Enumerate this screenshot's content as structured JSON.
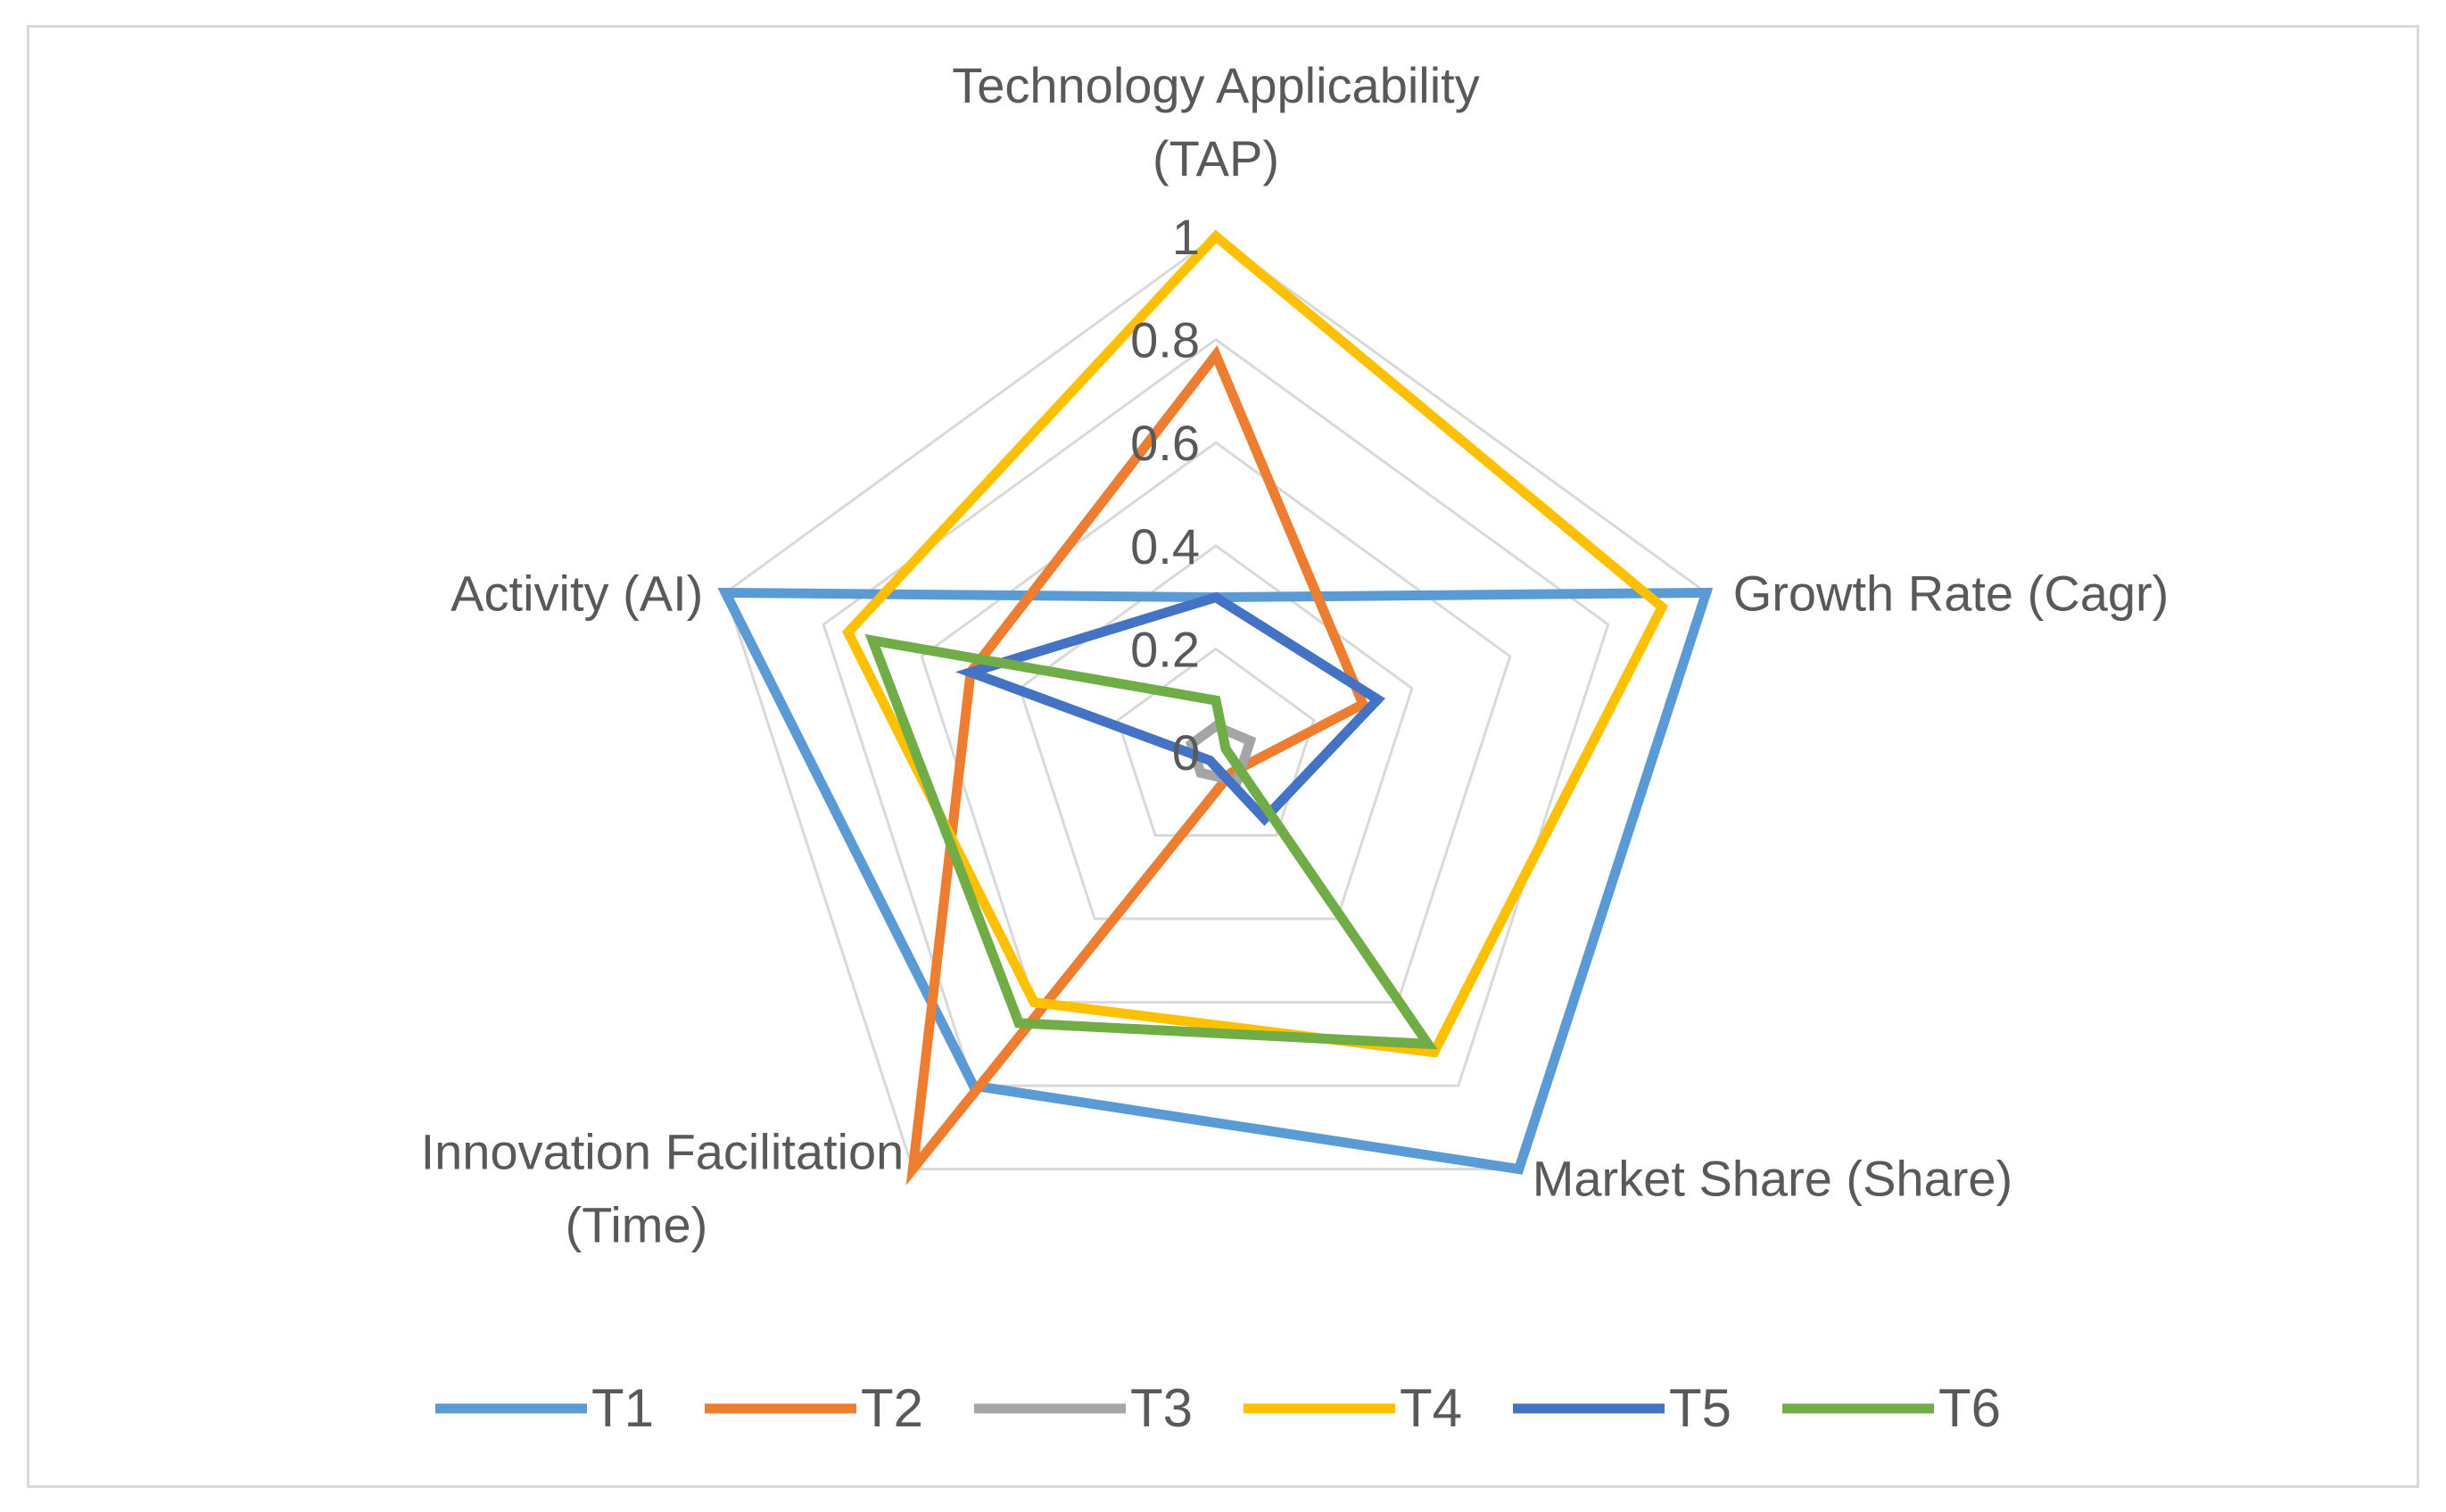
{
  "chart_data": {
    "type": "radar",
    "title": "",
    "axes": [
      {
        "name": "Technology Applicability (TAP)",
        "lines": [
          "Technology Applicability",
          "(TAP)"
        ]
      },
      {
        "name": "Growth Rate (Cagr)",
        "lines": [
          "Growth Rate (Cagr)"
        ]
      },
      {
        "name": "Market Share (Share)",
        "lines": [
          "Market Share (Share)"
        ]
      },
      {
        "name": "Innovation Facilitation (Time)",
        "lines": [
          "Innovation Facilitation",
          "(Time)"
        ]
      },
      {
        "name": "Activity (AI)",
        "lines": [
          "Activity (AI)"
        ]
      }
    ],
    "ticks": [
      0,
      0.2,
      0.4,
      0.6,
      0.8,
      1
    ],
    "tick_labels": [
      "0",
      "0.2",
      "0.4",
      "0.6",
      "0.8",
      "1"
    ],
    "range": [
      0,
      1
    ],
    "grid": true,
    "legend_position": "bottom",
    "series": [
      {
        "name": "T1",
        "color": "#5B9BD5",
        "values": [
          0.3,
          1.0,
          1.0,
          0.8,
          1.0
        ]
      },
      {
        "name": "T2",
        "color": "#ED7D31",
        "values": [
          0.77,
          0.3,
          0.05,
          1.0,
          0.5
        ]
      },
      {
        "name": "T3",
        "color": "#A5A5A5",
        "values": [
          0.05,
          0.07,
          0.07,
          0.05,
          0.05
        ]
      },
      {
        "name": "T4",
        "color": "#FFC000",
        "values": [
          1.0,
          0.91,
          0.72,
          0.6,
          0.75
        ]
      },
      {
        "name": "T5",
        "color": "#4472C4",
        "values": [
          0.3,
          0.33,
          0.16,
          0.02,
          0.5
        ]
      },
      {
        "name": "T6",
        "color": "#70AD47",
        "values": [
          0.1,
          0.02,
          0.7,
          0.65,
          0.7
        ]
      }
    ]
  }
}
